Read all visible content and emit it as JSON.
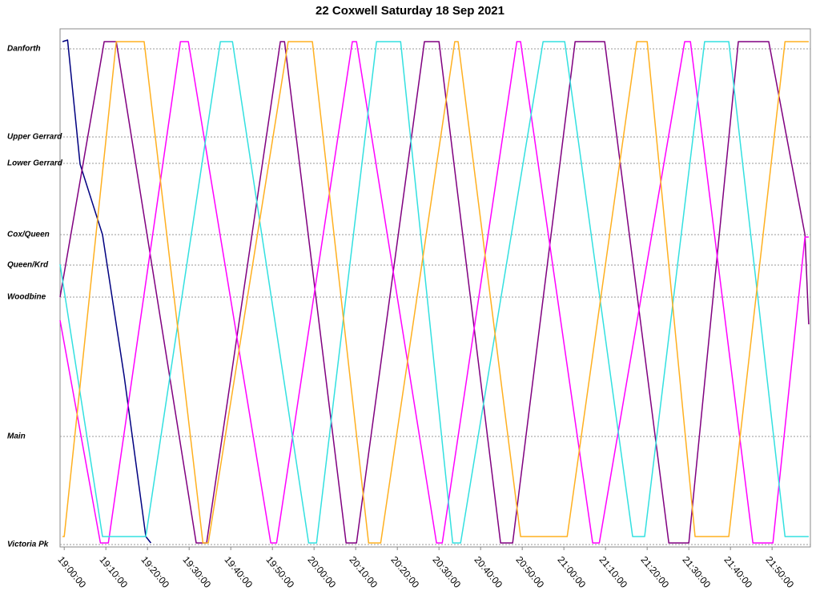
{
  "chart_data": {
    "type": "line",
    "title": "22 Coxwell Saturday 18 Sep 2021",
    "xlim": [
      1139,
      1319.2
    ],
    "xticks": [
      {
        "value": 1140,
        "label": "19:00:00"
      },
      {
        "value": 1150,
        "label": "19:10:00"
      },
      {
        "value": 1160,
        "label": "19:20:00"
      },
      {
        "value": 1170,
        "label": "19:30:00"
      },
      {
        "value": 1180,
        "label": "19:40:00"
      },
      {
        "value": 1190,
        "label": "19:50:00"
      },
      {
        "value": 1200,
        "label": "20:00:00"
      },
      {
        "value": 1210,
        "label": "20:10:00"
      },
      {
        "value": 1220,
        "label": "20:20:00"
      },
      {
        "value": 1230,
        "label": "20:30:00"
      },
      {
        "value": 1240,
        "label": "20:40:00"
      },
      {
        "value": 1250,
        "label": "20:50:00"
      },
      {
        "value": 1260,
        "label": "21:00:00"
      },
      {
        "value": 1270,
        "label": "21:10:00"
      },
      {
        "value": 1280,
        "label": "21:20:00"
      },
      {
        "value": 1290,
        "label": "21:30:00"
      },
      {
        "value": 1300,
        "label": "21:40:00"
      },
      {
        "value": 1310,
        "label": "21:50:00"
      }
    ],
    "ylim": [
      -0.03,
      6.44
    ],
    "yticks": [
      {
        "value": 0,
        "label": "Victoria Pk"
      },
      {
        "value": 1.35,
        "label": "Main"
      },
      {
        "value": 3.09,
        "label": "Woodbine"
      },
      {
        "value": 3.49,
        "label": "Queen/Krd"
      },
      {
        "value": 3.87,
        "label": "Cox/Queen"
      },
      {
        "value": 4.76,
        "label": "Lower Gerrard"
      },
      {
        "value": 5.09,
        "label": "Upper Gerrard"
      },
      {
        "value": 6.19,
        "label": "Danforth"
      }
    ],
    "grid": true,
    "series": [
      {
        "color": "#000080",
        "x": [
          1139.6,
          1140.8,
          1143.8,
          1149.2,
          1154.4,
          1159.6,
          1160.8
        ],
        "values": [
          6.28,
          6.3,
          4.75,
          3.87,
          2.1,
          0.1,
          0.02
        ]
      },
      {
        "color": "#800080",
        "x": [
          1139.0,
          1149.6,
          1152.5,
          1171.7,
          1174.2,
          1191.9,
          1192.9,
          1207.7,
          1210.2,
          1226.5,
          1230.0,
          1244.8,
          1247.7,
          1262.7,
          1269.8,
          1285.2,
          1290.0,
          1301.9,
          1309.2,
          1317.9,
          1318.8
        ],
        "values": [
          3.09,
          6.28,
          6.28,
          0.02,
          0.02,
          6.28,
          6.28,
          0.02,
          0.02,
          6.28,
          6.28,
          0.02,
          0.02,
          6.28,
          6.28,
          0.02,
          0.02,
          6.28,
          6.28,
          3.87,
          2.75
        ]
      },
      {
        "color": "#ff00ff",
        "x": [
          1139.0,
          1148.7,
          1150.6,
          1167.9,
          1169.8,
          1189.6,
          1191.0,
          1209.2,
          1210.2,
          1229.4,
          1230.8,
          1248.7,
          1249.6,
          1266.9,
          1268.5,
          1289.0,
          1290.4,
          1305.4,
          1310.2,
          1317.9,
          1318.8
        ],
        "values": [
          2.8,
          0.02,
          0.02,
          6.28,
          6.28,
          0.02,
          0.02,
          6.28,
          6.28,
          0.02,
          0.02,
          6.28,
          6.28,
          0.02,
          0.02,
          6.28,
          6.28,
          0.02,
          0.02,
          3.84,
          3.84
        ]
      },
      {
        "color": "#33e0e0",
        "x": [
          1139.0,
          1149.2,
          1159.6,
          1177.5,
          1180.4,
          1198.7,
          1200.6,
          1215.0,
          1220.8,
          1233.3,
          1235.2,
          1255.0,
          1260.2,
          1276.5,
          1279.4,
          1293.8,
          1299.6,
          1313.1,
          1318.8
        ],
        "values": [
          3.5,
          0.1,
          0.1,
          6.28,
          6.28,
          0.02,
          0.02,
          6.28,
          6.28,
          0.02,
          0.02,
          6.28,
          6.28,
          0.1,
          0.1,
          6.28,
          6.28,
          0.1,
          0.1
        ]
      },
      {
        "color": "#ffb020",
        "x": [
          1139.6,
          1140.0,
          1152.5,
          1159.2,
          1173.3,
          1174.6,
          1193.8,
          1199.6,
          1213.1,
          1216.0,
          1233.8,
          1234.6,
          1249.6,
          1260.8,
          1277.5,
          1280.0,
          1291.5,
          1299.6,
          1313.1,
          1318.8
        ],
        "values": [
          0.1,
          0.1,
          6.28,
          6.28,
          0.02,
          0.02,
          6.28,
          6.28,
          0.02,
          0.02,
          6.28,
          6.28,
          0.1,
          0.1,
          6.28,
          6.28,
          0.1,
          0.1,
          6.28,
          6.28
        ]
      }
    ]
  }
}
